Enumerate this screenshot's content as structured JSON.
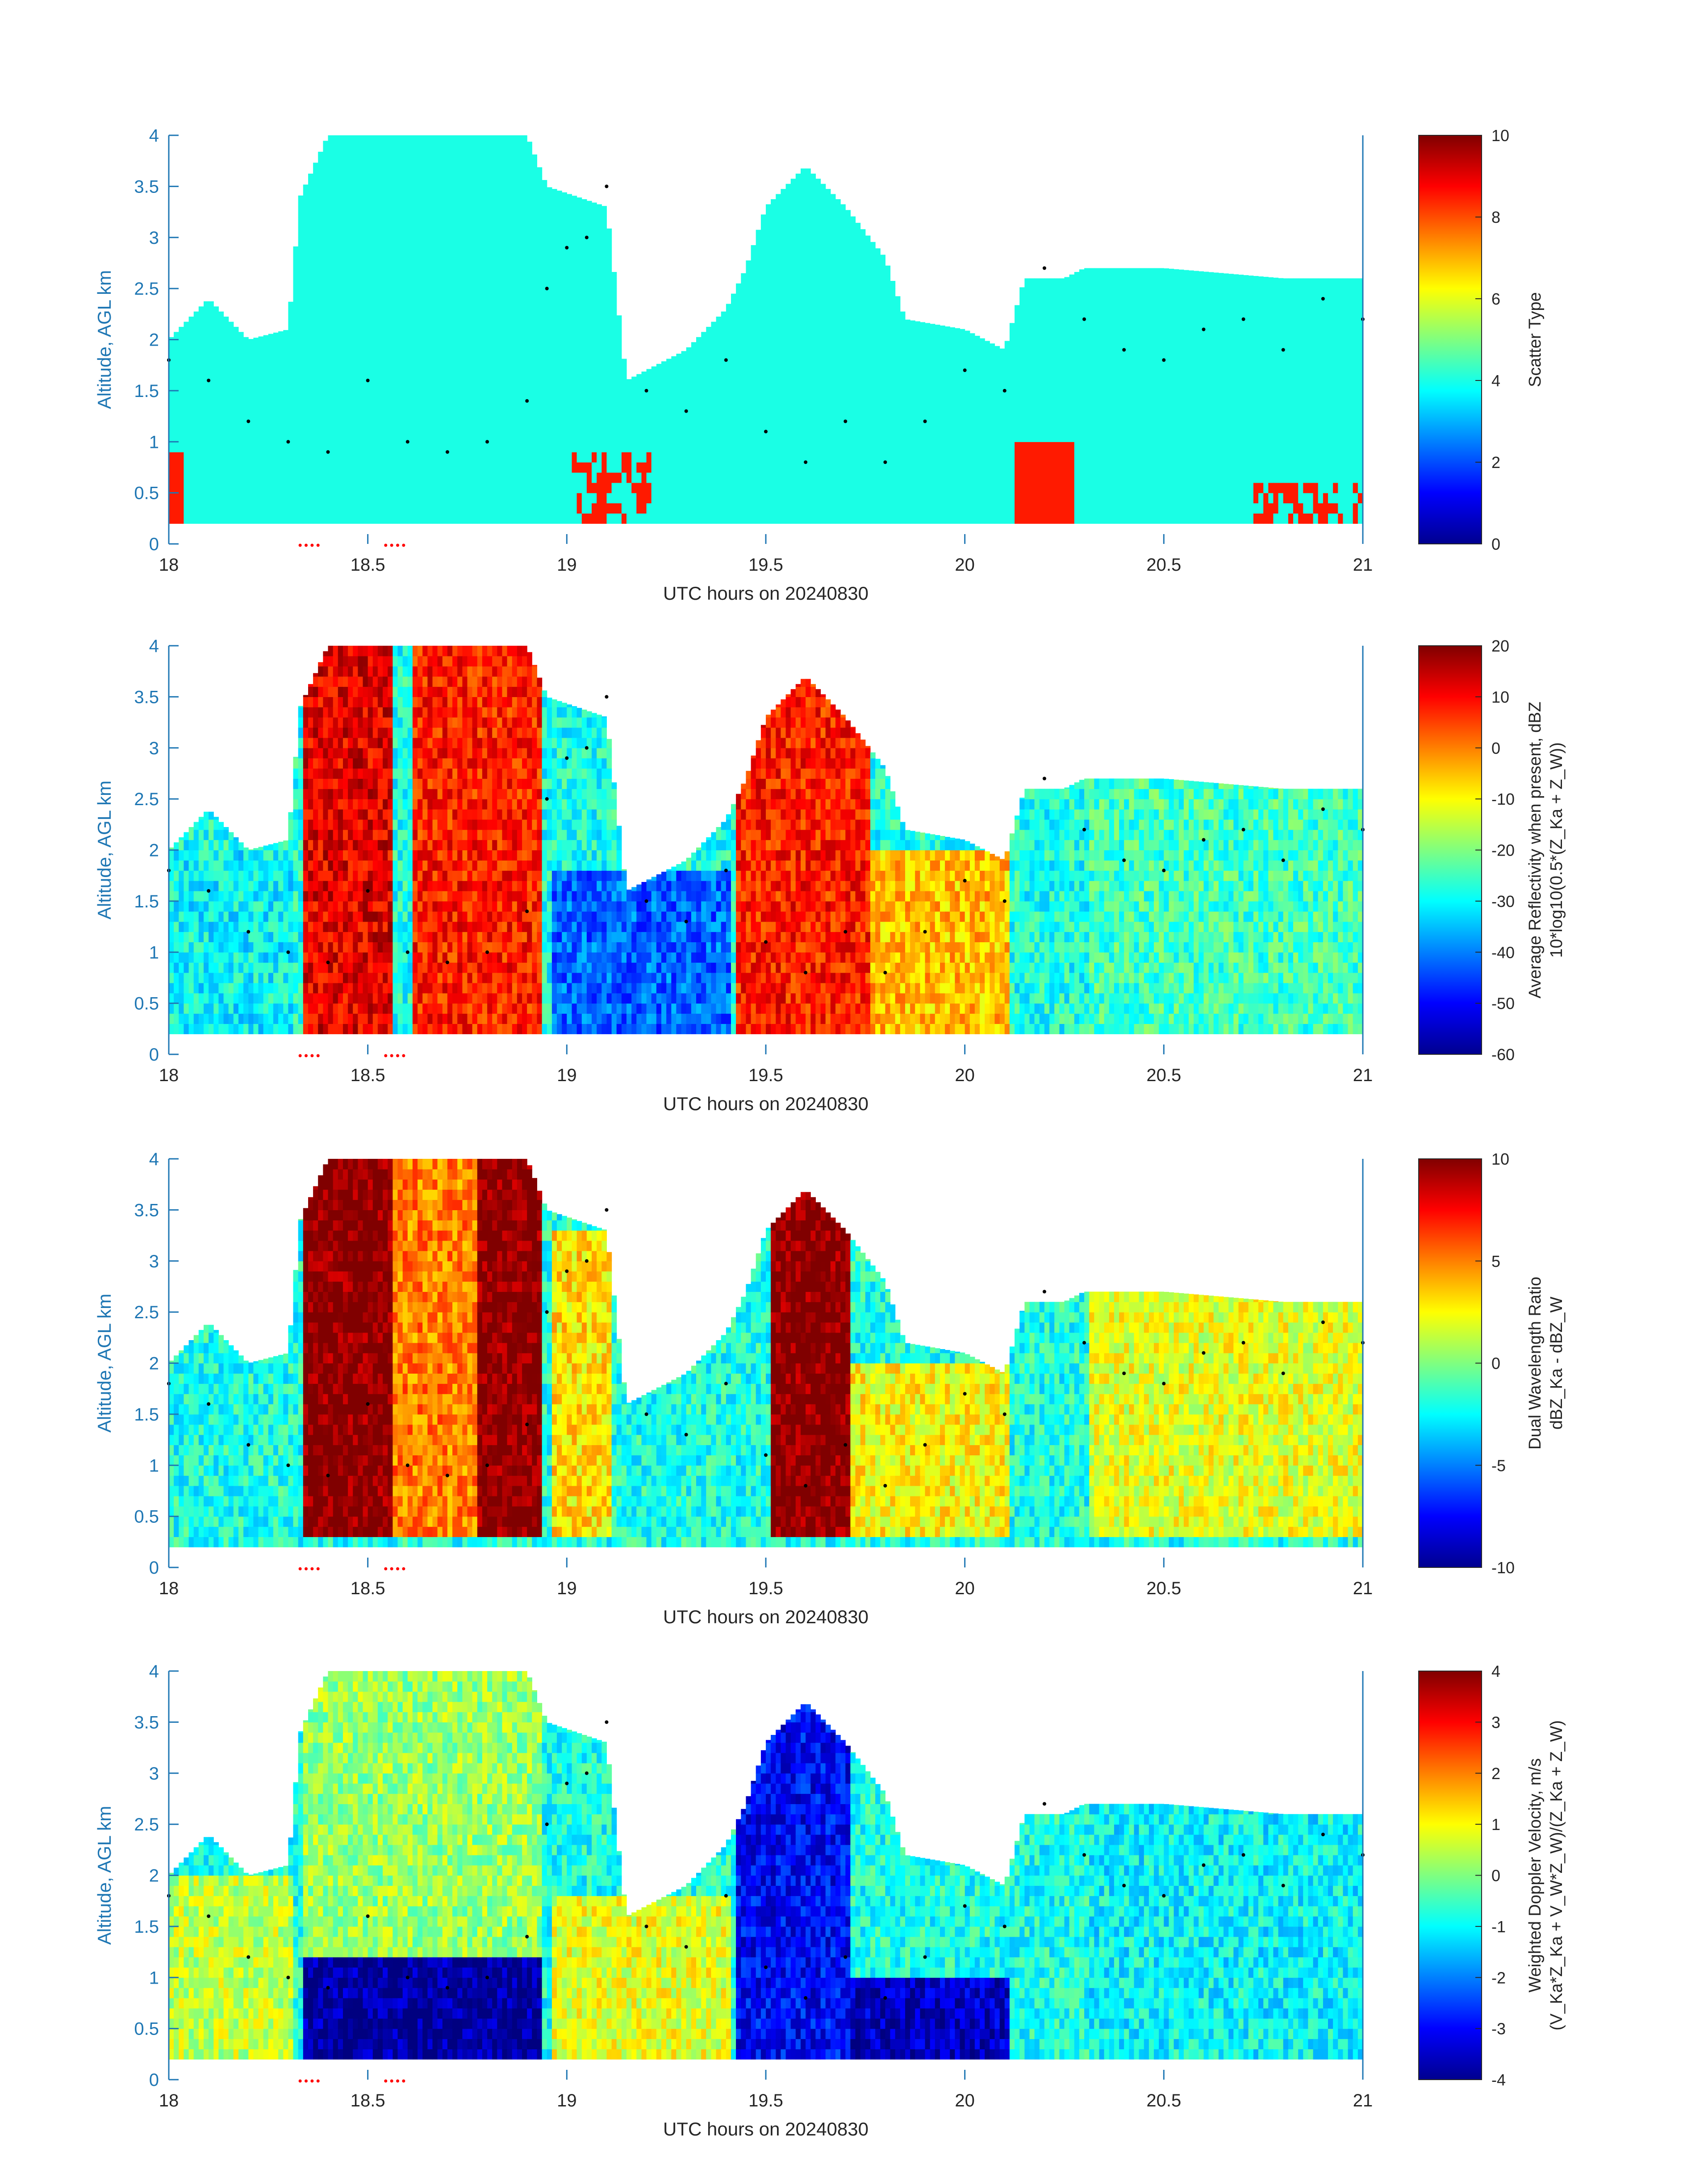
{
  "figure": {
    "shared": {
      "x_title": "UTC hours on 20240830",
      "y_title": "Altitude, AGL km",
      "xticks": [
        "18",
        "18.5",
        "19",
        "19.5",
        "20",
        "20.5",
        "21"
      ],
      "yticks": [
        "0",
        "0.5",
        "1",
        "1.5",
        "2",
        "2.5",
        "3",
        "3.5",
        "4"
      ]
    },
    "panels": [
      {
        "colorbar_title": "Scatter Type",
        "colorbar_title2": "",
        "colorbar_ticks": [
          "0",
          "2",
          "4",
          "6",
          "8",
          "10"
        ]
      },
      {
        "colorbar_title": "Average Reflectivity when present, dBZ",
        "colorbar_title2": "10*log10(0.5*(Z_Ka + Z_W))",
        "colorbar_ticks": [
          "-60",
          "-50",
          "-40",
          "-30",
          "-20",
          "-10",
          "0",
          "10",
          "20"
        ]
      },
      {
        "colorbar_title": "Dual Wavelength Ratio",
        "colorbar_title2": "dBZ_Ka - dBZ_W",
        "colorbar_ticks": [
          "-10",
          "-5",
          "0",
          "5",
          "10"
        ]
      },
      {
        "colorbar_title": "Weighted Doppler Velocity, m/s",
        "colorbar_title2": "(V_Ka*Z_Ka + V_W*Z_W)/(Z_Ka + Z_W)",
        "colorbar_ticks": [
          "-4",
          "-3",
          "-2",
          "-1",
          "0",
          "1",
          "2",
          "3",
          "4"
        ]
      }
    ]
  },
  "chart_data": [
    {
      "type": "heatmap",
      "xlabel": "UTC hours on 20240830",
      "ylabel": "Altitude, AGL km",
      "xlim": [
        18,
        21
      ],
      "ylim": [
        0,
        4
      ],
      "colorbar": {
        "label": "Scatter Type",
        "range": [
          0,
          10
        ],
        "colormap": "jet"
      },
      "dominant_values": [
        {
          "value": 4,
          "desc": "cyan region filling cloud, 18.0–21.0 h, up to 4 km"
        },
        {
          "value": 8.5,
          "desc": "orange-red columns near 18.0, 19.0–19.2, 20.1–20.25, 20.7–21.0 h below ~1 km"
        }
      ],
      "cloud_top_profile": [
        [
          18.0,
          2.0
        ],
        [
          18.1,
          2.4
        ],
        [
          18.2,
          2.0
        ],
        [
          18.3,
          2.1
        ],
        [
          18.33,
          3.4
        ],
        [
          18.4,
          4.0
        ],
        [
          18.6,
          4.0
        ],
        [
          18.9,
          4.0
        ],
        [
          18.95,
          3.5
        ],
        [
          19.1,
          3.3
        ],
        [
          19.15,
          1.6
        ],
        [
          19.3,
          1.9
        ],
        [
          19.4,
          2.3
        ],
        [
          19.45,
          2.7
        ],
        [
          19.5,
          3.3
        ],
        [
          19.6,
          3.7
        ],
        [
          19.7,
          3.3
        ],
        [
          19.8,
          2.8
        ],
        [
          19.85,
          2.2
        ],
        [
          20.0,
          2.1
        ],
        [
          20.1,
          1.9
        ],
        [
          20.15,
          2.6
        ],
        [
          20.25,
          2.6
        ],
        [
          20.3,
          2.7
        ],
        [
          20.5,
          2.7
        ],
        [
          20.8,
          2.6
        ],
        [
          21.0,
          2.6
        ]
      ],
      "black_markers": [
        [
          18.0,
          1.8
        ],
        [
          18.1,
          1.6
        ],
        [
          18.2,
          1.2
        ],
        [
          18.3,
          1.0
        ],
        [
          18.4,
          0.9
        ],
        [
          18.5,
          1.6
        ],
        [
          18.6,
          1.0
        ],
        [
          18.7,
          0.9
        ],
        [
          18.8,
          1.0
        ],
        [
          18.9,
          1.4
        ],
        [
          18.95,
          2.5
        ],
        [
          19.0,
          2.9
        ],
        [
          19.05,
          3.0
        ],
        [
          19.1,
          3.5
        ],
        [
          19.2,
          1.5
        ],
        [
          19.3,
          1.3
        ],
        [
          19.4,
          1.8
        ],
        [
          19.5,
          1.1
        ],
        [
          19.6,
          0.8
        ],
        [
          19.7,
          1.2
        ],
        [
          19.8,
          0.8
        ],
        [
          19.9,
          1.2
        ],
        [
          20.0,
          1.7
        ],
        [
          20.1,
          1.5
        ],
        [
          20.2,
          2.7
        ],
        [
          20.3,
          2.2
        ],
        [
          20.4,
          1.9
        ],
        [
          20.5,
          1.8
        ],
        [
          20.6,
          2.1
        ],
        [
          20.7,
          2.2
        ],
        [
          20.8,
          1.9
        ],
        [
          20.9,
          2.4
        ],
        [
          21.0,
          2.2
        ]
      ]
    },
    {
      "type": "heatmap",
      "xlabel": "UTC hours on 20240830",
      "ylabel": "Altitude, AGL km",
      "xlim": [
        18,
        21
      ],
      "ylim": [
        0,
        4
      ],
      "colorbar": {
        "label": "Average Reflectivity when present, dBZ",
        "range": [
          -60,
          20
        ],
        "colormap": "jet"
      },
      "regions": [
        {
          "x": [
            18.33,
            18.55
          ],
          "z": [
            0.2,
            4.0
          ],
          "value": 12
        },
        {
          "x": [
            18.6,
            18.93
          ],
          "z": [
            0.2,
            4.0
          ],
          "value": 8
        },
        {
          "x": [
            19.42,
            19.75
          ],
          "z": [
            0.2,
            3.8
          ],
          "value": 8
        },
        {
          "x": [
            19.75,
            20.1
          ],
          "z": [
            0.2,
            2.0
          ],
          "value": -5
        },
        {
          "x": [
            20.3,
            21.0
          ],
          "z": [
            0.2,
            2.7
          ],
          "value": -25
        },
        {
          "x": [
            18.0,
            18.3
          ],
          "z": [
            0.2,
            2.0
          ],
          "value": -30
        },
        {
          "x": [
            18.95,
            19.4
          ],
          "z": [
            0.2,
            1.8
          ],
          "value": -42
        }
      ]
    },
    {
      "type": "heatmap",
      "xlabel": "UTC hours on 20240830",
      "ylabel": "Altitude, AGL km",
      "xlim": [
        18,
        21
      ],
      "ylim": [
        0,
        4
      ],
      "colorbar": {
        "label": "Dual Wavelength Ratio",
        "range": [
          -10,
          10
        ],
        "colormap": "jet"
      },
      "regions": [
        {
          "x": [
            18.33,
            18.55
          ],
          "z": [
            0.3,
            4.0
          ],
          "value": 10
        },
        {
          "x": [
            18.77,
            18.93
          ],
          "z": [
            0.3,
            4.0
          ],
          "value": 10
        },
        {
          "x": [
            19.5,
            19.7
          ],
          "z": [
            0.3,
            3.8
          ],
          "value": 10
        },
        {
          "x": [
            18.55,
            18.77
          ],
          "z": [
            0.3,
            4.0
          ],
          "value": 5
        },
        {
          "x": [
            18.95,
            19.1
          ],
          "z": [
            0.3,
            3.3
          ],
          "value": 3
        },
        {
          "x": [
            19.7,
            20.1
          ],
          "z": [
            0.3,
            2.0
          ],
          "value": 2.5
        },
        {
          "x": [
            20.3,
            21.0
          ],
          "z": [
            0.3,
            2.7
          ],
          "value": 2
        }
      ]
    },
    {
      "type": "heatmap",
      "xlabel": "UTC hours on 20240830",
      "ylabel": "Altitude, AGL km",
      "xlim": [
        18,
        21
      ],
      "ylim": [
        0,
        4
      ],
      "colorbar": {
        "label": "Weighted Doppler Velocity, m/s",
        "range": [
          -4,
          4
        ],
        "colormap": "jet"
      },
      "regions": [
        {
          "x": [
            18.33,
            18.93
          ],
          "z": [
            0.2,
            1.1
          ],
          "value": -3.8
        },
        {
          "x": [
            18.33,
            18.93
          ],
          "z": [
            1.1,
            4.0
          ],
          "value": 0.2
        },
        {
          "x": [
            19.42,
            19.7
          ],
          "z": [
            0.2,
            3.8
          ],
          "value": -3.0
        },
        {
          "x": [
            19.7,
            20.1
          ],
          "z": [
            0.2,
            0.9
          ],
          "value": -3.5
        },
        {
          "x": [
            20.3,
            21.0
          ],
          "z": [
            0.2,
            2.7
          ],
          "value": -1.0
        },
        {
          "x": [
            18.0,
            18.3
          ],
          "z": [
            0.2,
            2.0
          ],
          "value": 0.5
        },
        {
          "x": [
            18.95,
            19.4
          ],
          "z": [
            0.2,
            1.8
          ],
          "value": 0.8
        }
      ]
    }
  ]
}
